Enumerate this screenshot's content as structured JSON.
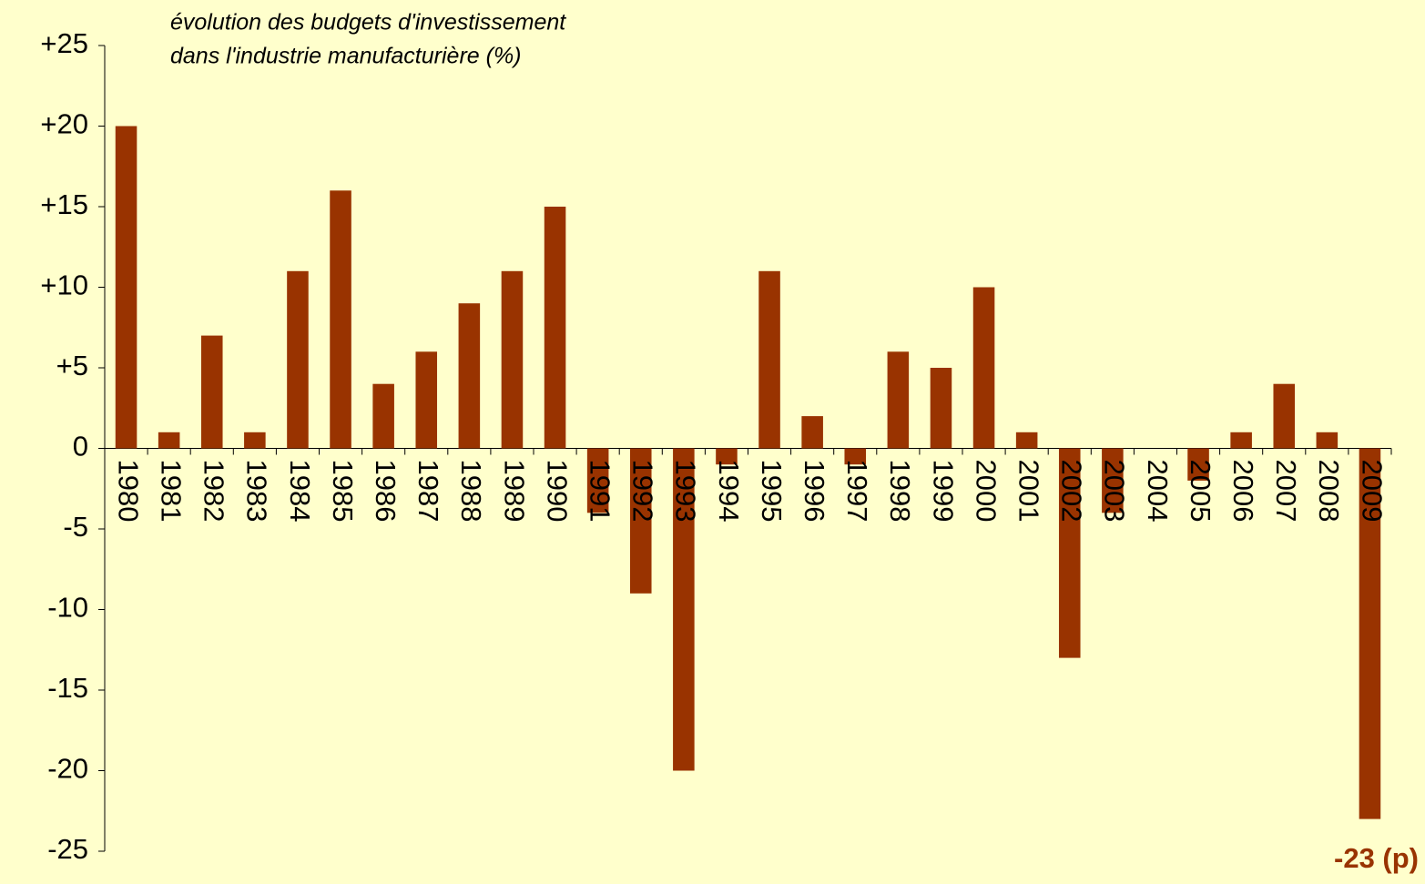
{
  "chart_data": {
    "type": "bar",
    "title_lines": [
      "évolution des budgets d'investissement",
      "dans l'industrie manufacturière (%)"
    ],
    "categories": [
      "1980",
      "1981",
      "1982",
      "1983",
      "1984",
      "1985",
      "1986",
      "1987",
      "1988",
      "1989",
      "1990",
      "1991",
      "1992",
      "1993",
      "1994",
      "1995",
      "1996",
      "1997",
      "1998",
      "1999",
      "2000",
      "2001",
      "2002",
      "2003",
      "2004",
      "2005",
      "2006",
      "2007",
      "2008",
      "2009"
    ],
    "values": [
      20,
      1,
      7,
      1,
      11,
      16,
      4,
      6,
      9,
      11,
      15,
      -4,
      -9,
      -20,
      -1,
      11,
      2,
      -1,
      6,
      5,
      10,
      1,
      -13,
      -4,
      0,
      -2,
      1,
      4,
      1,
      -23
    ],
    "color": "#993300",
    "ylim": [
      -25,
      25
    ],
    "yticks": [
      {
        "value": 25,
        "label": "+25"
      },
      {
        "value": 20,
        "label": "+20"
      },
      {
        "value": 15,
        "label": "+15"
      },
      {
        "value": 10,
        "label": "+10"
      },
      {
        "value": 5,
        "label": "+5"
      },
      0,
      -5,
      -10,
      -15,
      -20,
      -25
    ],
    "annotation": "-23 (p)",
    "grid": false
  }
}
